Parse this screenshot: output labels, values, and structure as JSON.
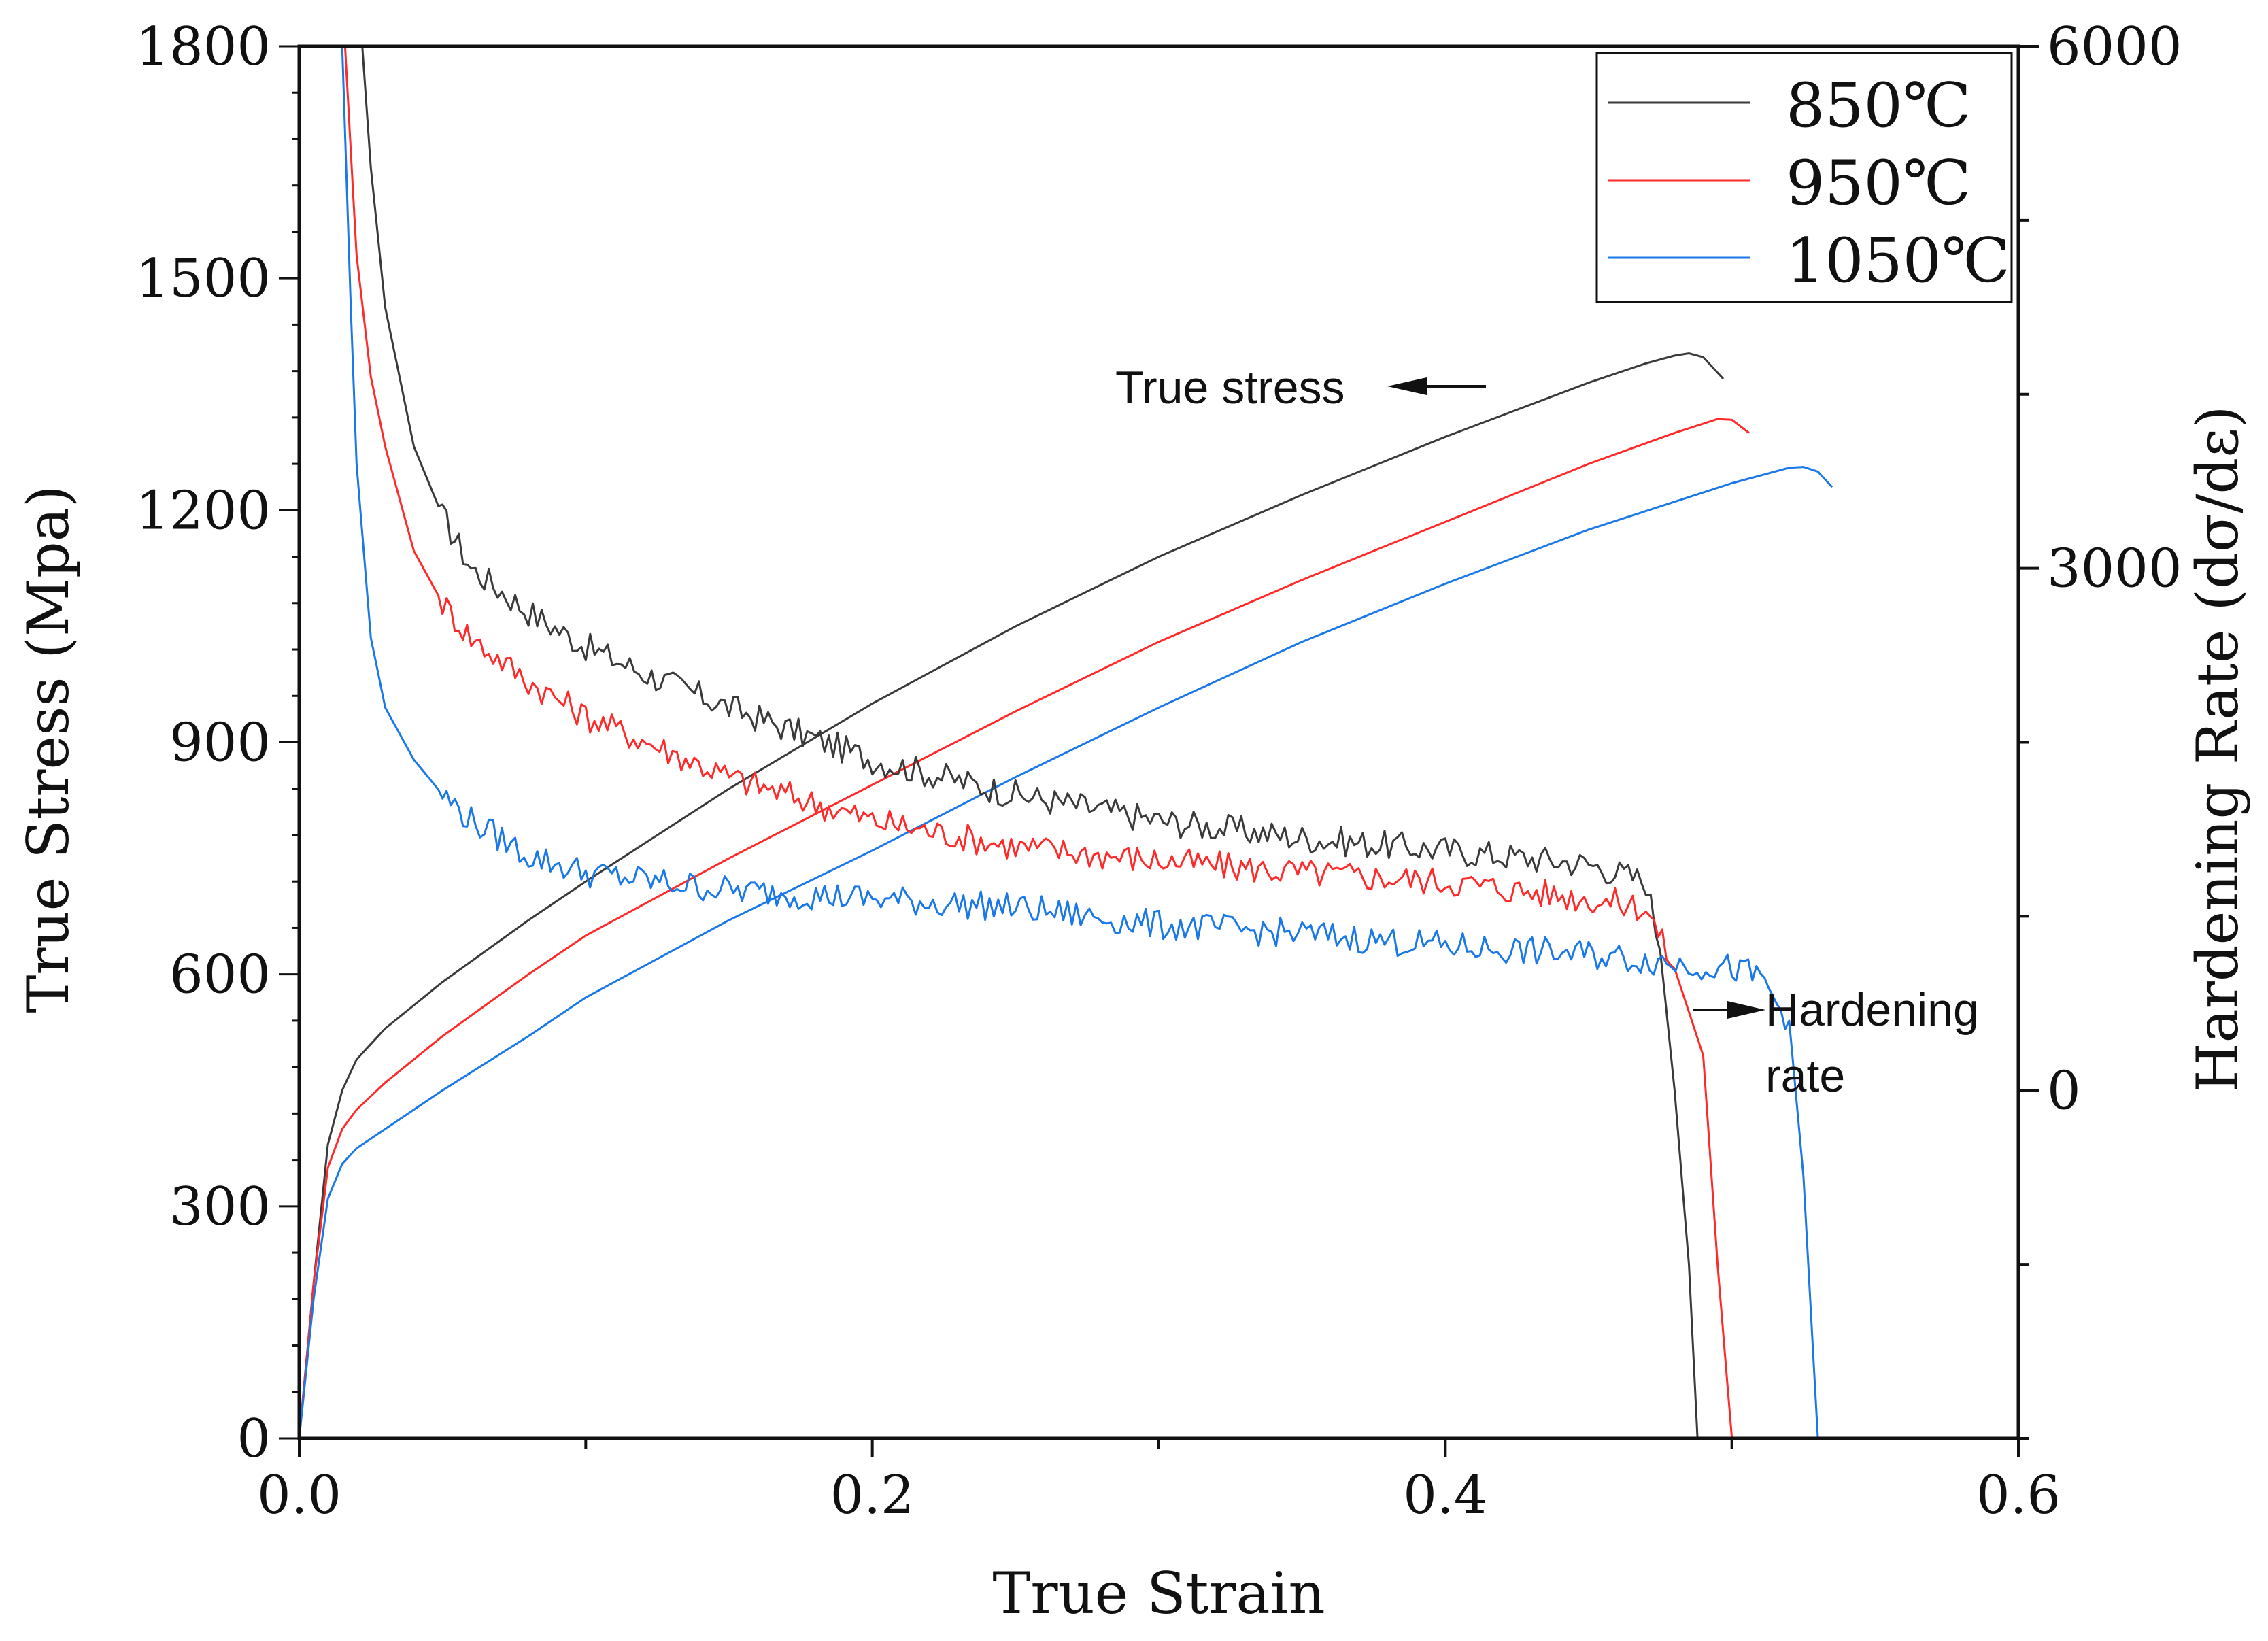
{
  "chart_data": {
    "type": "line",
    "title": "",
    "xlabel": "True Strain",
    "ylabel_left": "True Stress (Mpa)",
    "ylabel_right": "Hardening Rate (dσ/dε)",
    "xlim": [
      0,
      0.6
    ],
    "ylim_left": [
      0,
      1800
    ],
    "ylim_right": [
      -2000,
      6000
    ],
    "x_ticks": [
      "0.0",
      "0.2",
      "0.4",
      "0.6"
    ],
    "y_left_ticks": [
      "0",
      "300",
      "600",
      "900",
      "1200",
      "1500",
      "1800"
    ],
    "y_right_ticks": [
      "0",
      "3000",
      "6000"
    ],
    "grid": false,
    "legend_position": "top-right",
    "legend": [
      "850℃",
      "950℃",
      "1050℃"
    ],
    "colors": {
      "850": "#3a3a3a",
      "950": "#ff2a2a",
      "1050": "#1a78e8"
    },
    "annotations": {
      "true_stress": "True stress",
      "hardening_rate_line1": "Hardening",
      "hardening_rate_line2": "rate"
    },
    "stress_series": [
      {
        "name": "850℃",
        "axis": "left",
        "x": [
          0,
          0.005,
          0.01,
          0.015,
          0.02,
          0.03,
          0.05,
          0.08,
          0.1,
          0.15,
          0.2,
          0.25,
          0.3,
          0.35,
          0.4,
          0.45,
          0.47,
          0.48,
          0.485,
          0.49,
          0.497
        ],
        "y": [
          0,
          200,
          380,
          450,
          490,
          530,
          590,
          670,
          720,
          840,
          950,
          1050,
          1140,
          1220,
          1295,
          1365,
          1390,
          1400,
          1403,
          1398,
          1370
        ]
      },
      {
        "name": "950℃",
        "axis": "left",
        "x": [
          0,
          0.005,
          0.01,
          0.015,
          0.02,
          0.03,
          0.05,
          0.08,
          0.1,
          0.15,
          0.2,
          0.25,
          0.3,
          0.35,
          0.4,
          0.45,
          0.48,
          0.49,
          0.495,
          0.5,
          0.506
        ],
        "y": [
          0,
          200,
          350,
          400,
          425,
          460,
          520,
          600,
          650,
          750,
          845,
          940,
          1030,
          1110,
          1185,
          1260,
          1300,
          1312,
          1318,
          1317,
          1300
        ]
      },
      {
        "name": "1050℃",
        "axis": "left",
        "x": [
          0,
          0.005,
          0.01,
          0.015,
          0.02,
          0.03,
          0.05,
          0.08,
          0.1,
          0.15,
          0.2,
          0.25,
          0.3,
          0.35,
          0.4,
          0.45,
          0.5,
          0.51,
          0.52,
          0.525,
          0.53,
          0.535
        ],
        "y": [
          0,
          180,
          310,
          355,
          375,
          400,
          450,
          520,
          570,
          670,
          760,
          855,
          945,
          1030,
          1105,
          1175,
          1235,
          1245,
          1255,
          1256,
          1250,
          1230
        ]
      }
    ],
    "hardening_series": [
      {
        "name": "850℃",
        "axis": "right",
        "x": [
          0.022,
          0.025,
          0.03,
          0.04,
          0.05,
          0.06,
          0.08,
          0.1,
          0.12,
          0.15,
          0.2,
          0.25,
          0.3,
          0.35,
          0.4,
          0.45,
          0.47,
          0.475,
          0.48,
          0.485,
          0.488
        ],
        "y": [
          6000,
          5300,
          4500,
          3700,
          3300,
          3000,
          2750,
          2550,
          2400,
          2200,
          1900,
          1700,
          1550,
          1450,
          1380,
          1300,
          1200,
          800,
          0,
          -1000,
          -2000
        ]
      },
      {
        "name": "950℃",
        "axis": "right",
        "x": [
          0.016,
          0.02,
          0.025,
          0.03,
          0.04,
          0.05,
          0.06,
          0.08,
          0.1,
          0.15,
          0.2,
          0.25,
          0.3,
          0.35,
          0.4,
          0.45,
          0.47,
          0.48,
          0.49,
          0.495,
          0.5
        ],
        "y": [
          6000,
          4800,
          4100,
          3700,
          3100,
          2800,
          2600,
          2350,
          2150,
          1800,
          1550,
          1400,
          1320,
          1250,
          1200,
          1100,
          1050,
          700,
          200,
          -1000,
          -2000
        ]
      },
      {
        "name": "1050℃",
        "axis": "right",
        "x": [
          0.015,
          0.018,
          0.02,
          0.025,
          0.03,
          0.04,
          0.05,
          0.06,
          0.08,
          0.1,
          0.15,
          0.2,
          0.25,
          0.3,
          0.35,
          0.4,
          0.45,
          0.5,
          0.51,
          0.52,
          0.525,
          0.53
        ],
        "y": [
          6000,
          4500,
          3600,
          2600,
          2200,
          1900,
          1700,
          1550,
          1350,
          1250,
          1150,
          1100,
          1050,
          950,
          900,
          830,
          780,
          700,
          650,
          400,
          -500,
          -2000
        ]
      }
    ]
  }
}
